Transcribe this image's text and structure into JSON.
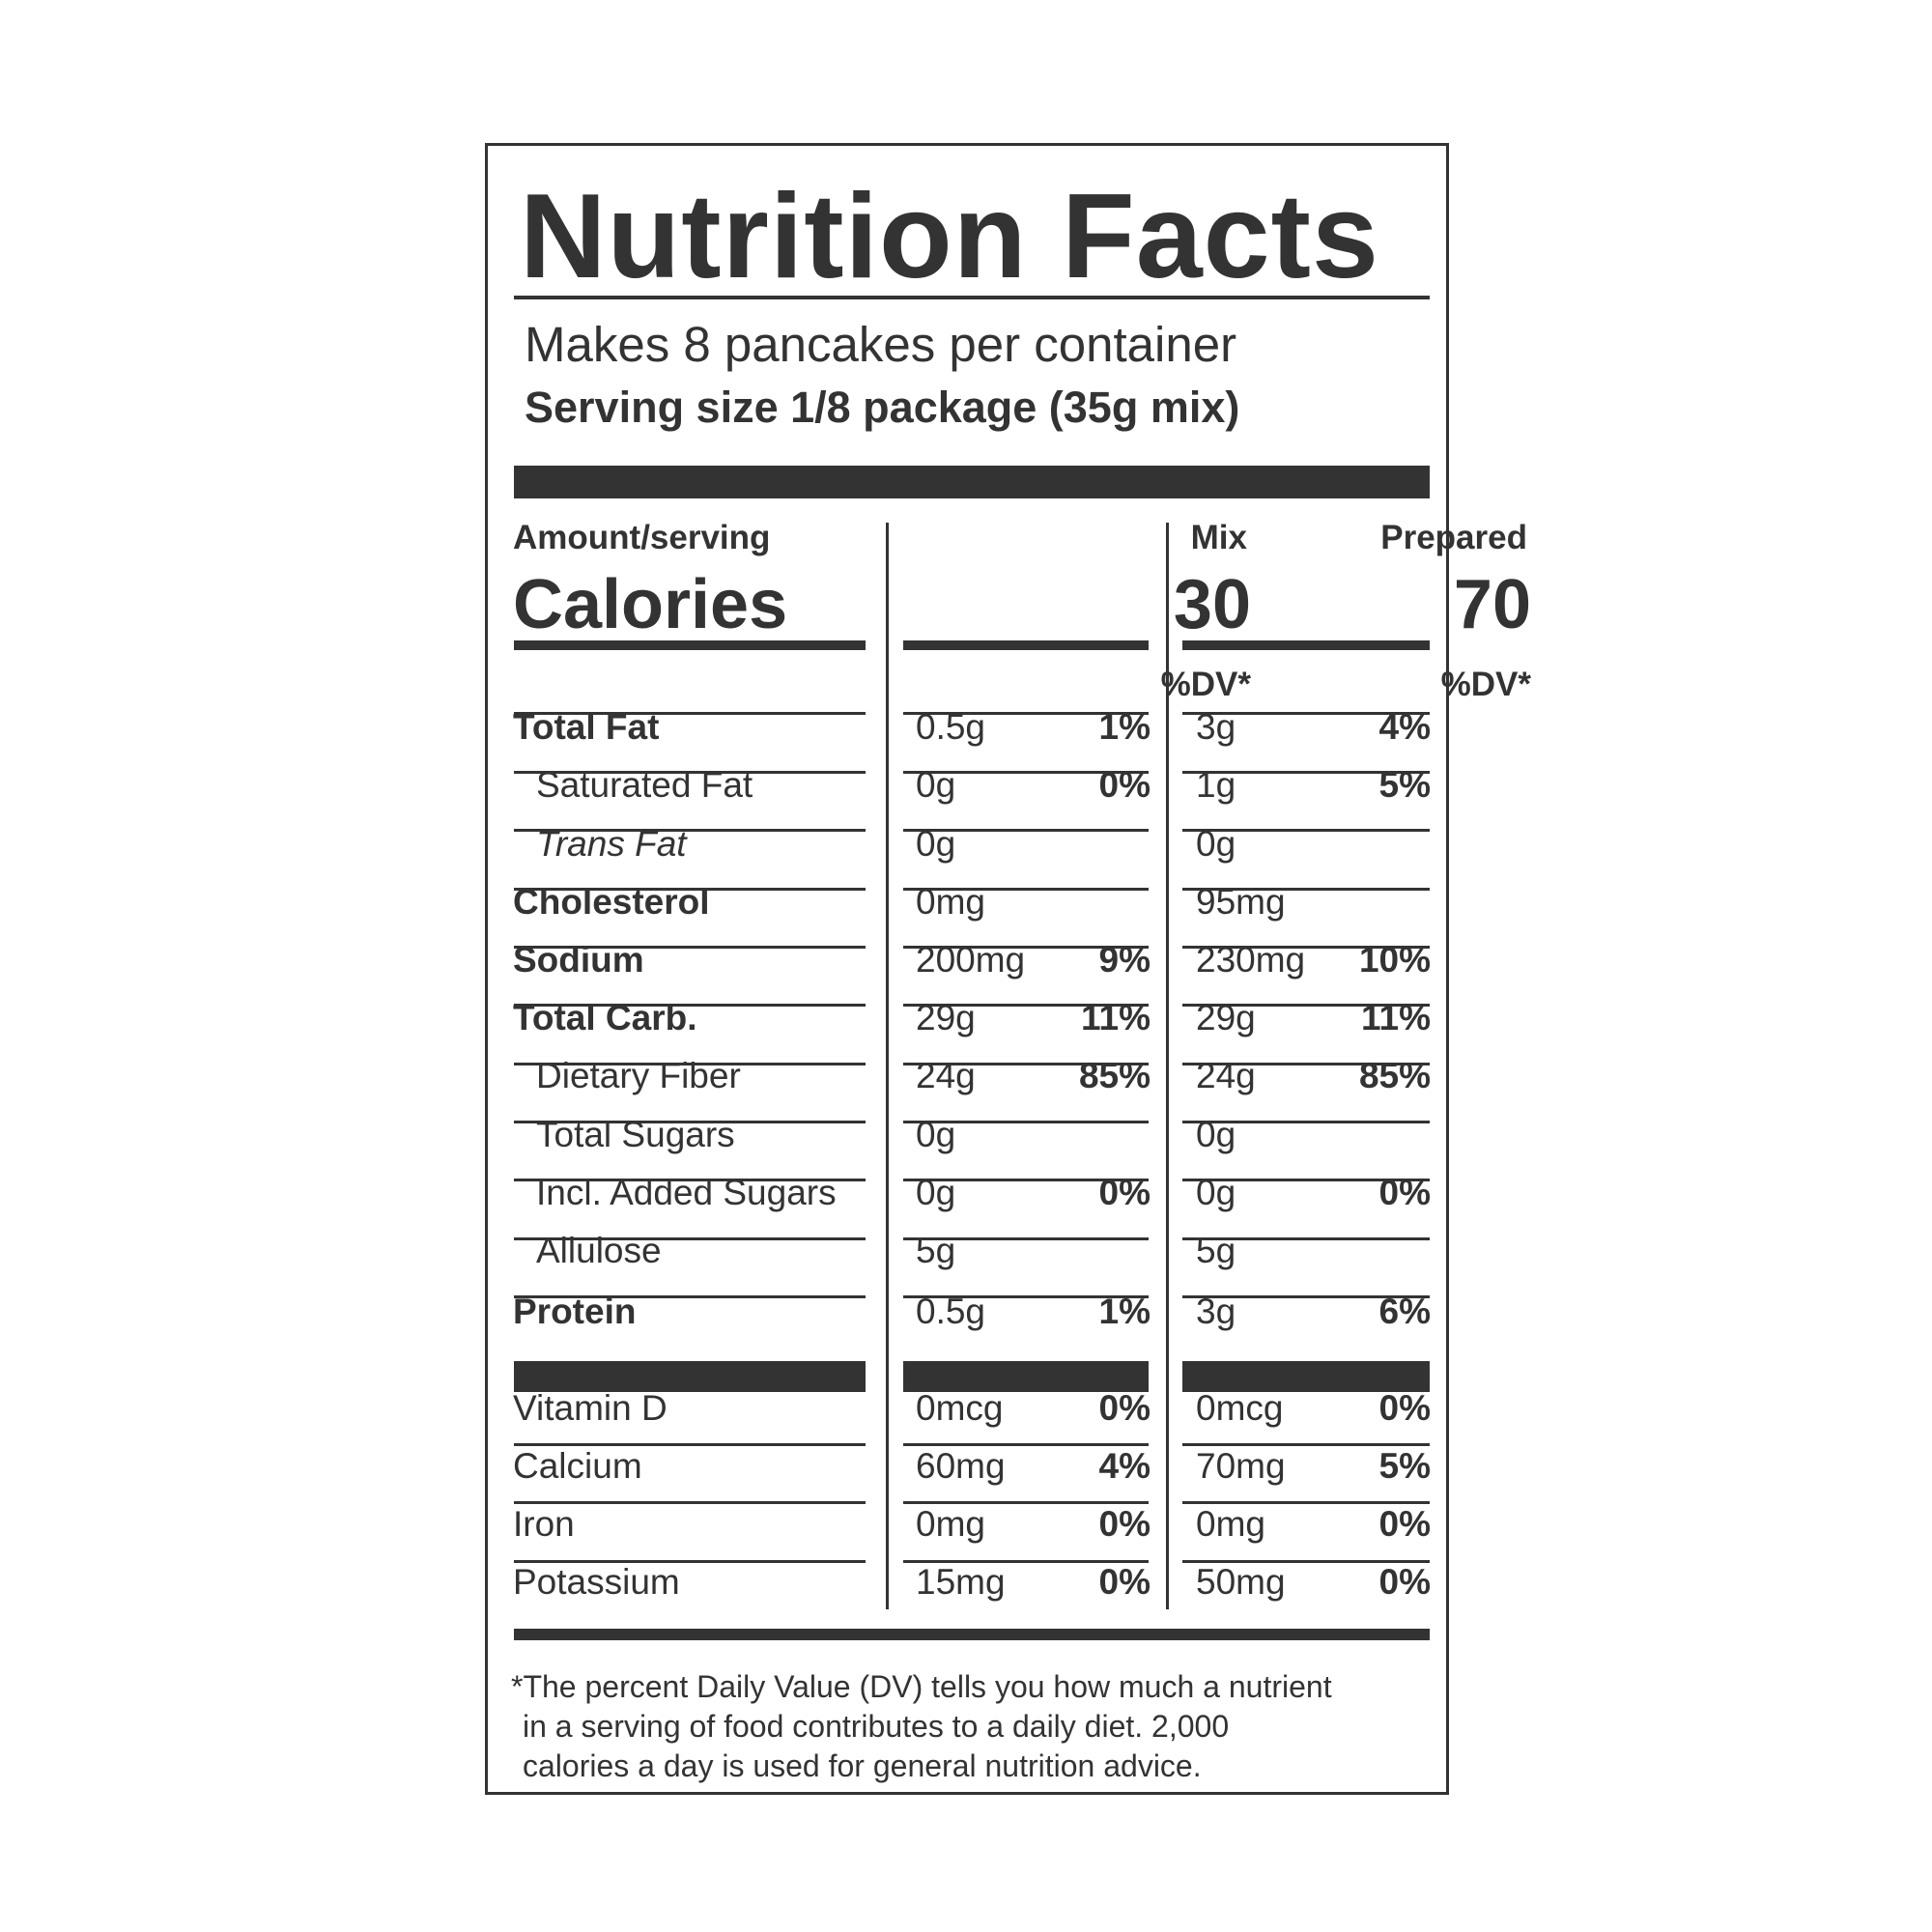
{
  "title": "Nutrition Facts",
  "servings_per_container": "Makes 8 pancakes per container",
  "serving_size": "Serving size 1/8 package (35g mix)",
  "amount_header": "Amount/serving",
  "calories_label": "Calories",
  "columns": {
    "mix": {
      "header": "Mix",
      "calories": "30",
      "dv_header": "%DV*"
    },
    "prepared": {
      "header": "Prepared",
      "calories": "70",
      "dv_header": "%DV*"
    }
  },
  "nutrients": [
    {
      "label": "Total Fat",
      "mix_amount": "0.5g",
      "mix_dv": "1%",
      "prep_amount": "3g",
      "prep_dv": "4%"
    },
    {
      "label": "Saturated Fat",
      "mix_amount": "0g",
      "mix_dv": "0%",
      "prep_amount": "1g",
      "prep_dv": "5%"
    },
    {
      "label": "Trans Fat",
      "mix_amount": "0g",
      "mix_dv": "",
      "prep_amount": "0g",
      "prep_dv": ""
    },
    {
      "label": "Cholesterol",
      "mix_amount": "0mg",
      "mix_dv": "",
      "prep_amount": "95mg",
      "prep_dv": ""
    },
    {
      "label": "Sodium",
      "mix_amount": "200mg",
      "mix_dv": "9%",
      "prep_amount": "230mg",
      "prep_dv": "10%"
    },
    {
      "label": "Total Carb.",
      "mix_amount": "29g",
      "mix_dv": "11%",
      "prep_amount": "29g",
      "prep_dv": "11%"
    },
    {
      "label": "Dietary Fiber",
      "mix_amount": "24g",
      "mix_dv": "85%",
      "prep_amount": "24g",
      "prep_dv": "85%"
    },
    {
      "label": "Total Sugars",
      "mix_amount": "0g",
      "mix_dv": "",
      "prep_amount": "0g",
      "prep_dv": ""
    },
    {
      "label": "Incl. Added Sugars",
      "mix_amount": "0g",
      "mix_dv": "0%",
      "prep_amount": "0g",
      "prep_dv": "0%"
    },
    {
      "label": "Allulose",
      "mix_amount": "5g",
      "mix_dv": "",
      "prep_amount": "5g",
      "prep_dv": ""
    },
    {
      "label": "Protein",
      "mix_amount": "0.5g",
      "mix_dv": "1%",
      "prep_amount": "3g",
      "prep_dv": "6%"
    }
  ],
  "vitamins": [
    {
      "label": "Vitamin D",
      "mix_amount": "0mcg",
      "mix_dv": "0%",
      "prep_amount": "0mcg",
      "prep_dv": "0%"
    },
    {
      "label": "Calcium",
      "mix_amount": "60mg",
      "mix_dv": "4%",
      "prep_amount": "70mg",
      "prep_dv": "5%"
    },
    {
      "label": "Iron",
      "mix_amount": "0mg",
      "mix_dv": "0%",
      "prep_amount": "0mg",
      "prep_dv": "0%"
    },
    {
      "label": "Potassium",
      "mix_amount": "15mg",
      "mix_dv": "0%",
      "prep_amount": "50mg",
      "prep_dv": "0%"
    }
  ],
  "footnote": [
    "*The percent Daily Value (DV) tells you how much a nutrient",
    "in a serving of food contributes to a daily diet. 2,000",
    "calories a day is used for general nutrition advice."
  ]
}
